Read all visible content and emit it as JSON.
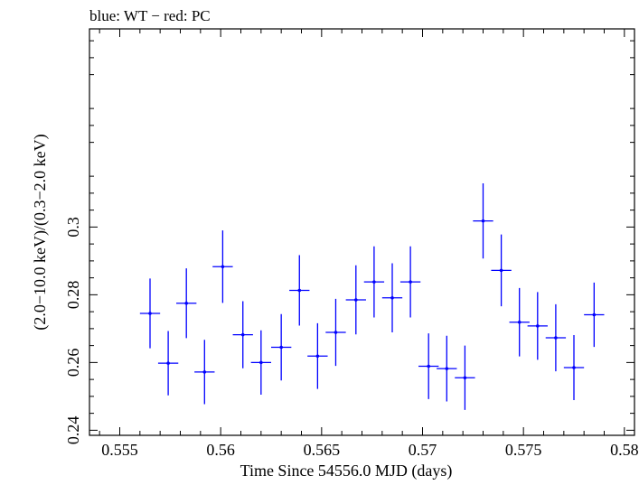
{
  "chart_data": {
    "type": "scatter",
    "title": "blue: WT − red: PC",
    "xlabel": "Time Since 54556.0 MJD (days)",
    "ylabel": "(2.0−10.0 keV)/(0.3−2.0 keV)",
    "xlim": [
      0.5535,
      0.5805
    ],
    "ylim": [
      0.2385,
      0.3585
    ],
    "x_ticks": [
      0.555,
      0.56,
      0.565,
      0.57,
      0.575,
      0.58
    ],
    "x_tick_labels": [
      "0.555",
      "0.56",
      "0.565",
      "0.57",
      "0.575",
      "0.58"
    ],
    "y_ticks": [
      0.24,
      0.26,
      0.28,
      0.3
    ],
    "y_tick_labels": [
      "0.24",
      "0.26",
      "0.28",
      "0.3"
    ],
    "grid": false,
    "series": [
      {
        "color": "#0000ff",
        "points": [
          {
            "x": 0.5565,
            "y": 0.2745,
            "xerr": 0.0005,
            "yerr": 0.0103
          },
          {
            "x": 0.5574,
            "y": 0.2598,
            "xerr": 0.0005,
            "yerr": 0.0095
          },
          {
            "x": 0.5583,
            "y": 0.2775,
            "xerr": 0.0005,
            "yerr": 0.0103
          },
          {
            "x": 0.5592,
            "y": 0.2572,
            "xerr": 0.0005,
            "yerr": 0.0095
          },
          {
            "x": 0.5601,
            "y": 0.2883,
            "xerr": 0.0005,
            "yerr": 0.0107
          },
          {
            "x": 0.5611,
            "y": 0.2682,
            "xerr": 0.0005,
            "yerr": 0.0099
          },
          {
            "x": 0.562,
            "y": 0.26,
            "xerr": 0.0005,
            "yerr": 0.0095
          },
          {
            "x": 0.563,
            "y": 0.2645,
            "xerr": 0.0005,
            "yerr": 0.0098
          },
          {
            "x": 0.5639,
            "y": 0.2813,
            "xerr": 0.0005,
            "yerr": 0.0104
          },
          {
            "x": 0.5648,
            "y": 0.2619,
            "xerr": 0.0005,
            "yerr": 0.0097
          },
          {
            "x": 0.5657,
            "y": 0.2689,
            "xerr": 0.0005,
            "yerr": 0.0099
          },
          {
            "x": 0.5667,
            "y": 0.2785,
            "xerr": 0.0005,
            "yerr": 0.0102
          },
          {
            "x": 0.5676,
            "y": 0.2838,
            "xerr": 0.0005,
            "yerr": 0.0105
          },
          {
            "x": 0.5685,
            "y": 0.2791,
            "xerr": 0.0005,
            "yerr": 0.0102
          },
          {
            "x": 0.5694,
            "y": 0.2838,
            "xerr": 0.0005,
            "yerr": 0.0105
          },
          {
            "x": 0.5703,
            "y": 0.2589,
            "xerr": 0.0005,
            "yerr": 0.0097
          },
          {
            "x": 0.5712,
            "y": 0.2582,
            "xerr": 0.0005,
            "yerr": 0.0097
          },
          {
            "x": 0.5721,
            "y": 0.2555,
            "xerr": 0.0005,
            "yerr": 0.0095
          },
          {
            "x": 0.573,
            "y": 0.3018,
            "xerr": 0.0005,
            "yerr": 0.0111
          },
          {
            "x": 0.5739,
            "y": 0.2872,
            "xerr": 0.0005,
            "yerr": 0.0106
          },
          {
            "x": 0.5748,
            "y": 0.2719,
            "xerr": 0.0005,
            "yerr": 0.0101
          },
          {
            "x": 0.5757,
            "y": 0.2708,
            "xerr": 0.0005,
            "yerr": 0.01
          },
          {
            "x": 0.5766,
            "y": 0.2673,
            "xerr": 0.0005,
            "yerr": 0.0099
          },
          {
            "x": 0.5775,
            "y": 0.2585,
            "xerr": 0.0005,
            "yerr": 0.0096
          },
          {
            "x": 0.5785,
            "y": 0.2741,
            "xerr": 0.0005,
            "yerr": 0.0095
          }
        ]
      }
    ]
  }
}
